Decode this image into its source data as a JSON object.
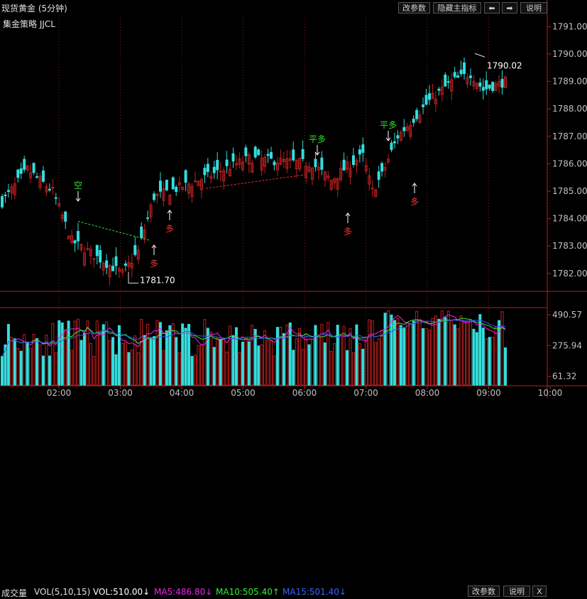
{
  "window": {
    "title": "现货黄金 (5分钟)"
  },
  "toolbar": {
    "params_label": "改参数",
    "hide_indicator_label": "隐藏主指标",
    "left_arrow": "⬅",
    "right_arrow": "➡",
    "help_label": "说明"
  },
  "strategy_label": "集金策略 JJCL",
  "chart_data": [
    {
      "type": "candlestick",
      "title": "现货黄金 (5分钟)",
      "y_ticks": [
        "1791.00",
        "1790.00",
        "1789.00",
        "1788.00",
        "1787.00",
        "1786.00",
        "1785.00",
        "1784.00",
        "1783.00",
        "1782.00"
      ],
      "ylim": [
        1781.4,
        1791.4
      ],
      "x_ticks": [
        "02:00",
        "03:00",
        "04:00",
        "05:00",
        "06:00",
        "07:00",
        "08:00",
        "09:00",
        "10:00"
      ],
      "high_marker": "1790.02",
      "low_marker": "1781.70",
      "signals": [
        {
          "text": "空",
          "color": "#33dd33",
          "at": "01:52"
        },
        {
          "text": "多",
          "color": "#ee3333",
          "at": "03:32"
        },
        {
          "text": "多",
          "color": "#ee3333",
          "at": "03:48"
        },
        {
          "text": "平多",
          "color": "#33dd33",
          "at": "07:12"
        },
        {
          "text": "多",
          "color": "#ee3333",
          "at": "07:52"
        },
        {
          "text": "平多",
          "color": "#33dd33",
          "at": "08:27"
        },
        {
          "text": "多",
          "color": "#ee3333",
          "at": "08:52"
        }
      ],
      "colors": {
        "up": "#c02020",
        "down": "#33dddd",
        "background": "#000000"
      }
    },
    {
      "type": "bar",
      "title": "成交量",
      "indicator": "VOL(5,10,15)",
      "vol_label": "VOL:510.00↓",
      "ma5_label": "MA5:486.80↓",
      "ma10_label": "MA10:505.40↑",
      "ma15_label": "MA15:501.40↓",
      "y_ticks": [
        "490.57",
        "275.94",
        "61.32"
      ],
      "series_colors": {
        "vol": "#ffffff",
        "ma5": "#ee22ee",
        "ma10": "#33ee33",
        "ma15": "#3355ff"
      }
    }
  ],
  "vol_toolbar": {
    "params_label": "改参数",
    "help_label": "说明",
    "close_label": "X"
  }
}
